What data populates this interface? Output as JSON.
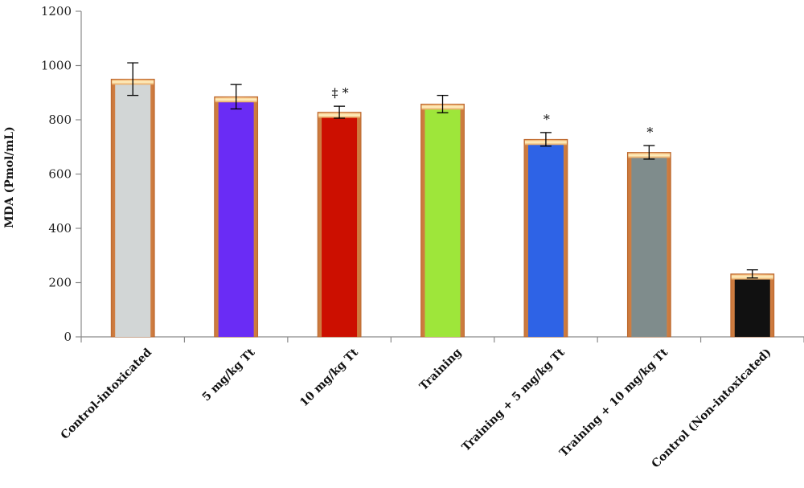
{
  "chart_data": {
    "type": "bar",
    "ylabel": "MDA (Pmol/mL)",
    "ylim": [
      0,
      1200
    ],
    "yticks": [
      0,
      200,
      400,
      600,
      800,
      1000,
      1200
    ],
    "grid": false,
    "legend": "none",
    "categories": [
      "Control-intoxicated",
      "5 mg/kg Tt",
      "10 mg/kg Tt",
      "Training",
      "Training + 5 mg/kg Tt",
      "Training + 10 mg/kg Tt",
      "Control (Non-intoxicated)"
    ],
    "values": [
      950,
      885,
      828,
      858,
      728,
      680,
      232
    ],
    "errors": [
      60,
      45,
      22,
      32,
      25,
      25,
      15
    ],
    "annotations": [
      "",
      "",
      "‡ *",
      "",
      "*",
      "*",
      ""
    ],
    "bar_colors": [
      "#d2d6d6",
      "#6a2cf5",
      "#cc0f00",
      "#9ee63a",
      "#2e63e6",
      "#7f8c8c",
      "#111111"
    ],
    "bar_border_color": "#e08a45"
  }
}
